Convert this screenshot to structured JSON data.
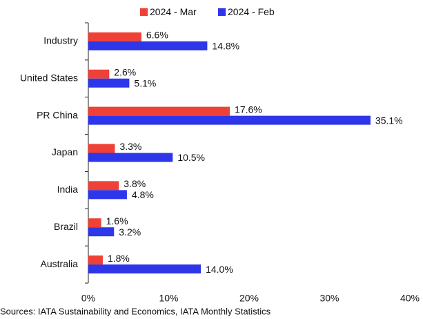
{
  "chart_data": {
    "type": "hbar",
    "categories": [
      "Industry",
      "United States",
      "PR China",
      "Japan",
      "India",
      "Brazil",
      "Australia"
    ],
    "series": [
      {
        "name": "2024 - Mar",
        "color": "#ef4136",
        "values": [
          6.6,
          2.6,
          17.6,
          3.3,
          3.8,
          1.6,
          1.8
        ],
        "value_labels": [
          "6.6%",
          "2.6%",
          "17.6%",
          "3.3%",
          "3.8%",
          "1.6%",
          "1.8%"
        ]
      },
      {
        "name": "2024 - Feb",
        "color": "#2e36ea",
        "values": [
          14.8,
          5.1,
          35.1,
          10.5,
          4.8,
          3.2,
          14.0
        ],
        "value_labels": [
          "14.8%",
          "5.1%",
          "35.1%",
          "10.5%",
          "4.8%",
          "3.2%",
          "14.0%"
        ]
      }
    ],
    "xlim": [
      0,
      40
    ],
    "xticks": [
      {
        "value": 0,
        "label": "0%"
      },
      {
        "value": 10,
        "label": "10%"
      },
      {
        "value": 20,
        "label": "20%"
      },
      {
        "value": 30,
        "label": "30%"
      },
      {
        "value": 40,
        "label": "40%"
      }
    ],
    "legend": "top",
    "source": "Sources: IATA Sustainability and Economics, IATA Monthly Statistics"
  }
}
